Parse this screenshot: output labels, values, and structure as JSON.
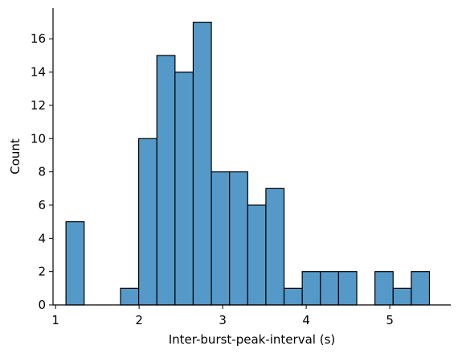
{
  "chart_data": {
    "type": "bar",
    "subtype": "histogram",
    "xlabel": "Inter-burst-peak-interval (s)",
    "ylabel": "Count",
    "xlim": [
      0.97,
      5.73
    ],
    "ylim": [
      0,
      17.85
    ],
    "x_ticks": [
      {
        "value": 1,
        "label": "1"
      },
      {
        "value": 2,
        "label": "2"
      },
      {
        "value": 3,
        "label": "3"
      },
      {
        "value": 4,
        "label": "4"
      },
      {
        "value": 5,
        "label": "5"
      }
    ],
    "y_ticks": [
      {
        "value": 0,
        "label": "0"
      },
      {
        "value": 2,
        "label": "2"
      },
      {
        "value": 4,
        "label": "4"
      },
      {
        "value": 6,
        "label": "6"
      },
      {
        "value": 8,
        "label": "8"
      },
      {
        "value": 10,
        "label": "10"
      },
      {
        "value": 12,
        "label": "12"
      },
      {
        "value": 14,
        "label": "14"
      },
      {
        "value": 16,
        "label": "16"
      }
    ],
    "bin_start": 1.125,
    "bin_width": 0.2175,
    "counts": [
      5,
      0,
      0,
      1,
      10,
      15,
      14,
      17,
      8,
      8,
      6,
      7,
      1,
      2,
      2,
      2,
      0,
      2,
      1,
      2
    ],
    "bar_color": "#5599c8",
    "edge_color": "#000000",
    "grid": false,
    "spines": [
      "left",
      "bottom"
    ]
  }
}
